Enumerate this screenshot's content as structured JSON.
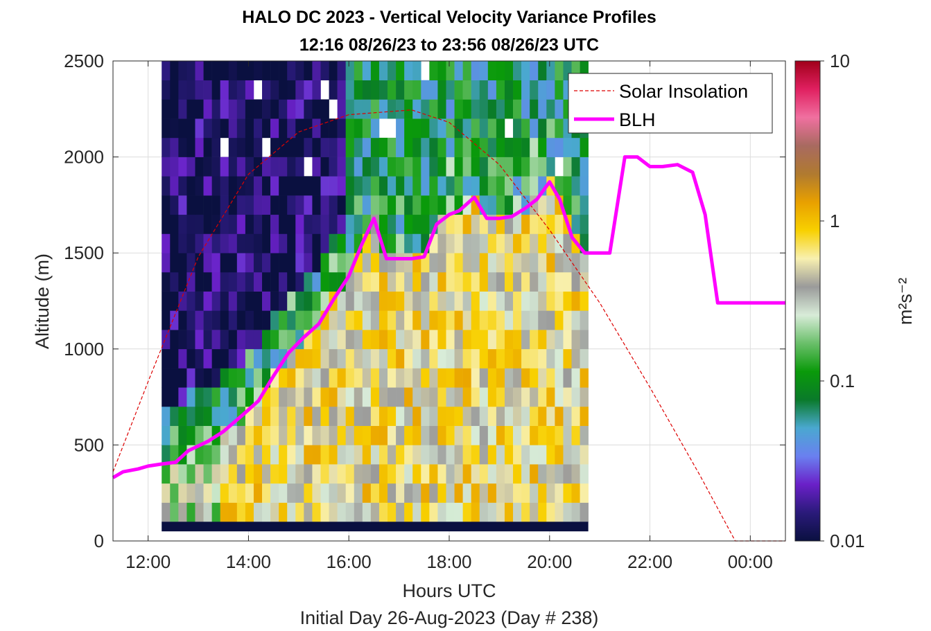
{
  "chart_data": {
    "type": "heatmap",
    "title": "HALO DC 2023 - Vertical Velocity Variance Profiles",
    "subtitle": "12:16 08/26/23 to 23:56 08/26/23  UTC",
    "xlabel": "Hours UTC",
    "xlabel2": "Initial Day 26-Aug-2023 (Day # 238)",
    "ylabel": "Altitude (m)",
    "xlim_hours": [
      11.3,
      24.7
    ],
    "ylim": [
      0,
      2500
    ],
    "x_ticks": [
      {
        "v": 12,
        "label": "12:00"
      },
      {
        "v": 14,
        "label": "14:00"
      },
      {
        "v": 16,
        "label": "16:00"
      },
      {
        "v": 18,
        "label": "18:00"
      },
      {
        "v": 20,
        "label": "20:00"
      },
      {
        "v": 22,
        "label": "22:00"
      },
      {
        "v": 24,
        "label": "00:00"
      }
    ],
    "y_ticks": [
      {
        "v": 0,
        "label": "0"
      },
      {
        "v": 500,
        "label": "500"
      },
      {
        "v": 1000,
        "label": "1000"
      },
      {
        "v": 1500,
        "label": "1500"
      },
      {
        "v": 2000,
        "label": "2000"
      },
      {
        "v": 2500,
        "label": "2500"
      }
    ],
    "grid": true,
    "colorbar": {
      "scale": "log",
      "range": [
        0.01,
        10
      ],
      "ticks": [
        {
          "v": 0.01,
          "label": "0.01"
        },
        {
          "v": 0.1,
          "label": "0.1"
        },
        {
          "v": 1,
          "label": "1"
        },
        {
          "v": 10,
          "label": "10"
        }
      ],
      "label": "m²s⁻²",
      "colors": [
        "#0a1040",
        "#2a1a7a",
        "#6a20c8",
        "#6a80f0",
        "#4aa8d0",
        "#0a7a2a",
        "#0a9a0a",
        "#6abf6a",
        "#d8ecd8",
        "#9a9a9a",
        "#f8f0b0",
        "#f8d000",
        "#e8a000",
        "#b07a30",
        "#a86a60",
        "#f070a0",
        "#e02060",
        "#a0001a"
      ]
    },
    "legend": {
      "position": "top-right",
      "entries": [
        {
          "label": "Solar Insolation",
          "style": "dashed",
          "color": "#dd0000"
        },
        {
          "label": "BLH",
          "style": "solid",
          "color": "#ff00ff"
        }
      ]
    },
    "heatmap": {
      "time_start_hours": 12.27,
      "bin_hours": 0.1667,
      "alt_bottom": 100,
      "bin_alt": 100,
      "n_time_bins": 51,
      "n_alt_bins": 24,
      "profile_tops_m": [
        2500,
        2500,
        2500,
        2500,
        2500,
        2500,
        2500,
        2500,
        2500,
        2500,
        2500,
        2500,
        2500,
        2500,
        2500,
        2500,
        2500,
        2500,
        2500,
        2500,
        2500,
        2500,
        2500,
        2500,
        2500,
        2500,
        2500,
        2500,
        2500,
        2500,
        2500,
        2500,
        2500,
        2500,
        2500,
        2500,
        2500,
        2500,
        2500,
        2500,
        2500,
        2500,
        2500,
        2500,
        2500,
        2500,
        2500,
        2500,
        2500,
        2500,
        2500
      ],
      "note_variance_m2s2": "log10 variance per cell; bottom row ~0.01"
    },
    "series": [
      {
        "name": "BLH",
        "x": [
          11.3,
          11.5,
          11.8,
          12.0,
          12.25,
          12.55,
          12.8,
          13.2,
          13.5,
          13.9,
          14.2,
          14.5,
          14.8,
          15.1,
          15.4,
          15.7,
          16.0,
          16.25,
          16.5,
          16.75,
          17.0,
          17.25,
          17.5,
          17.75,
          18.0,
          18.2,
          18.5,
          18.75,
          19.0,
          19.25,
          19.5,
          19.75,
          20.0,
          20.2,
          20.45,
          20.7,
          20.95,
          21.2,
          21.5,
          21.75,
          22.0,
          22.25,
          22.55,
          22.85,
          23.1,
          23.35,
          23.6,
          23.75,
          24.0,
          24.7
        ],
        "y": [
          330,
          360,
          375,
          390,
          400,
          410,
          470,
          520,
          570,
          660,
          730,
          860,
          980,
          1060,
          1130,
          1260,
          1380,
          1540,
          1680,
          1470,
          1470,
          1470,
          1480,
          1650,
          1700,
          1720,
          1790,
          1680,
          1680,
          1690,
          1730,
          1780,
          1870,
          1780,
          1580,
          1500,
          1500,
          1500,
          2000,
          2000,
          1950,
          1950,
          1960,
          1920,
          1700,
          1240,
          1240,
          1240,
          1240,
          1240
        ]
      },
      {
        "name": "Solar Insolation",
        "x": [
          11.3,
          12.0,
          13.0,
          14.0,
          15.0,
          16.0,
          17.0,
          17.25,
          18.0,
          19.0,
          20.0,
          21.0,
          22.0,
          23.0,
          23.7,
          24.0,
          24.7
        ],
        "y": [
          360,
          830,
          1480,
          1910,
          2130,
          2220,
          2240,
          2245,
          2180,
          1960,
          1620,
          1240,
          800,
          340,
          0,
          0,
          0
        ]
      }
    ]
  }
}
